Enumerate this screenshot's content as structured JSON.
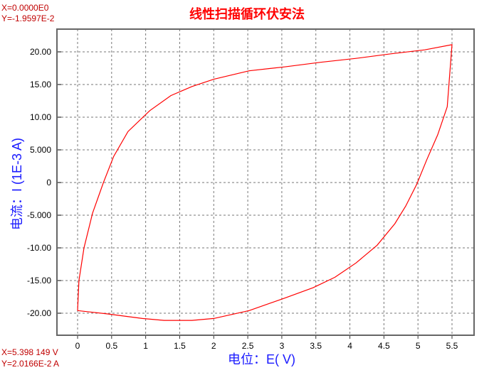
{
  "cursor_top": {
    "x": "X=0.0000E0",
    "y": "Y=-1.9597E-2"
  },
  "cursor_bottom": {
    "x": "X=5.398 149 V",
    "y": "Y=2.0166E-2 A"
  },
  "chart_data": {
    "type": "line",
    "title": "线性扫描循环伏安法",
    "xlabel": "电位：E( V)",
    "ylabel": "电流：I (1E-3 A)",
    "xlim": [
      -0.3,
      5.8
    ],
    "ylim": [
      -23.5,
      23.5
    ],
    "grid": true,
    "xticks": [
      0,
      0.5,
      1,
      1.5,
      2,
      2.5,
      3,
      3.5,
      4,
      4.5,
      5,
      5.5
    ],
    "xtick_labels": [
      "0",
      "0.5",
      "1",
      "1.5",
      "2",
      "2.5",
      "3",
      "3.5",
      "4",
      "4.5",
      "5",
      "5.5"
    ],
    "yticks": [
      20,
      15,
      10,
      5,
      0,
      -5,
      -10,
      -15,
      -20
    ],
    "ytick_labels": [
      "20.00",
      "15.00",
      "10.00",
      "5.000",
      "0",
      "-5.000",
      "-10.00",
      "-15.00",
      "-20.00"
    ],
    "line_color": "#ff0000",
    "series": [
      {
        "x": [
          0,
          0.02,
          0.094,
          0.22,
          0.38,
          0.53,
          0.74,
          1.06,
          1.37,
          1.68,
          2.0,
          2.52,
          3.04,
          3.57,
          4.09,
          4.6,
          5.1,
          5.5,
          5.47,
          5.43,
          5.29,
          5.13,
          4.98,
          4.82,
          4.66,
          4.4,
          4.09,
          3.78,
          3.46,
          3.04,
          2.52,
          2.0,
          1.68,
          1.27,
          0.95,
          0.43,
          0
        ],
        "y": [
          -19.6,
          -15,
          -10,
          -4.7,
          0,
          4,
          7.8,
          11,
          13.3,
          14.7,
          15.8,
          17.1,
          17.7,
          18.4,
          19,
          19.7,
          20.3,
          21.1,
          17,
          11.6,
          7.3,
          3.5,
          -0.3,
          -3.6,
          -6.3,
          -9.6,
          -12.3,
          -14.5,
          -16.1,
          -17.7,
          -19.6,
          -20.8,
          -21.1,
          -21.1,
          -20.8,
          -20.1,
          -19.6
        ]
      }
    ]
  }
}
